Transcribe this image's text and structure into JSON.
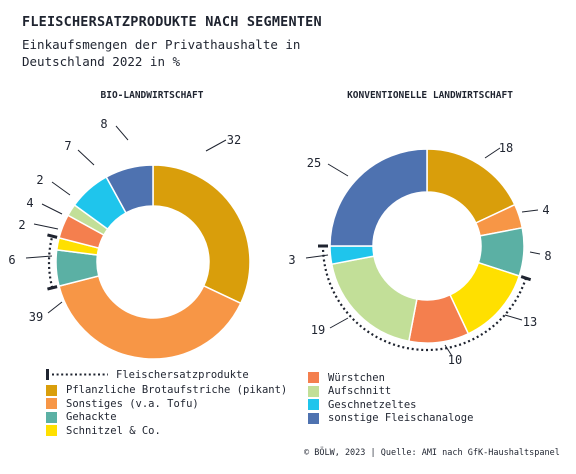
{
  "title": "FLEISCHERSATZPRODUKTE NACH SEGMENTEN",
  "subtitle_line1": "Einkaufsmengen der Privathaushalte in",
  "subtitle_line2": "Deutschland 2022 in %",
  "source": "© BÖLW, 2023 | Quelle: AMI nach GfK-Haushaltspanel",
  "colors": {
    "Pflanzliche Brotaufstriche (pikant)": "#D99E0B",
    "Sonstiges (v.a. Tofu)": "#F79646",
    "Gehacktes": "#5BB0A4",
    "Schnitzel & Co.": "#FFE000",
    "Würstchen": "#F47F4E",
    "Aufschnitt": "#C2DF98",
    "Geschnetzeltes": "#1FC5EC",
    "sonstige Fleischanaloge": "#4E72B0",
    "text": "#1f2430"
  },
  "legend_left": {
    "group_label": "Fleischersatzprodukte",
    "items": [
      "Pflanzliche Brotaufstriche (pikant)",
      "Sonstiges (v.a. Tofu)",
      "Gehackte",
      "Schnitzel & Co."
    ]
  },
  "legend_right": {
    "items": [
      "Würstchen",
      "Aufschnitt",
      "Geschnetzeltes",
      "sonstige Fleischanaloge"
    ]
  },
  "chart_data": [
    {
      "type": "pie",
      "title": "BIO-LANDWIRTSCHAFT",
      "slices": [
        {
          "name": "Pflanzliche Brotaufstriche (pikant)",
          "value": 32
        },
        {
          "name": "Sonstiges (v.a. Tofu)",
          "value": 39
        },
        {
          "name": "Gehacktes",
          "value": 6
        },
        {
          "name": "Schnitzel & Co.",
          "value": 2
        },
        {
          "name": "Würstchen",
          "value": 4
        },
        {
          "name": "Aufschnitt",
          "value": 2
        },
        {
          "name": "Geschnetzeltes",
          "value": 7
        },
        {
          "name": "sonstige Fleischanaloge",
          "value": 8
        }
      ],
      "bracket": {
        "label": "Fleischersatzprodukte",
        "from_value_cum": 71,
        "to_value_cum": 79
      }
    },
    {
      "type": "pie",
      "title": "KONVENTIONELLE LANDWIRTSCHAFT",
      "slices": [
        {
          "name": "Pflanzliche Brotaufstriche (pikant)",
          "value": 18
        },
        {
          "name": "Sonstiges (v.a. Tofu)",
          "value": 4
        },
        {
          "name": "Gehacktes",
          "value": 8
        },
        {
          "name": "Schnitzel & Co.",
          "value": 13
        },
        {
          "name": "Würstchen",
          "value": 10
        },
        {
          "name": "Aufschnitt",
          "value": 19
        },
        {
          "name": "Geschnetzeltes",
          "value": 3
        },
        {
          "name": "sonstige Fleischanaloge",
          "value": 25
        }
      ],
      "bracket": {
        "label": "Fleischersatzprodukte",
        "from_value_cum": 30,
        "to_value_cum": 75
      }
    }
  ]
}
